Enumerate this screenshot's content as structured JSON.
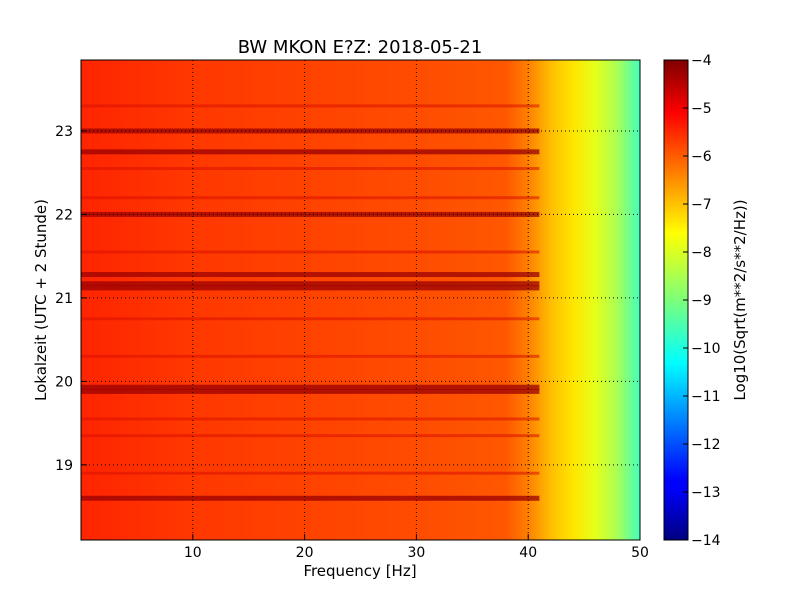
{
  "chart_data": {
    "type": "heatmap",
    "title": "BW MKON E?Z: 2018-05-21",
    "xlabel": "Frequency [Hz]",
    "ylabel": "Lokalzeit (UTC + 2 Stunde)",
    "xlim": [
      0,
      50
    ],
    "ylim": [
      23.85,
      18.1
    ],
    "y_axis_inverted": true,
    "x_ticks": [
      10,
      20,
      30,
      40,
      50
    ],
    "x_tick_labels": [
      "10",
      "20",
      "30",
      "40",
      "50"
    ],
    "y_ticks": [
      19,
      20,
      21,
      22,
      23
    ],
    "y_tick_labels": [
      "19",
      "20",
      "21",
      "22",
      "23"
    ],
    "grid": "dotted",
    "colorbar": {
      "label": "Log10(Sqrt(m**2/s**2/Hz))",
      "colormap": "jet",
      "range": [
        -14,
        -4
      ],
      "ticks": [
        -4,
        -5,
        -6,
        -7,
        -8,
        -9,
        -10,
        -11,
        -12,
        -13,
        -14
      ],
      "tick_labels": [
        "−4",
        "−5",
        "−6",
        "−7",
        "−8",
        "−9",
        "−10",
        "−11",
        "−12",
        "−13",
        "−14"
      ]
    },
    "spectral_profile": {
      "description_values_log10": true,
      "frequency_hz": [
        0,
        5,
        10,
        20,
        30,
        38,
        40,
        42,
        44,
        46,
        48,
        50
      ],
      "level": [
        -5.6,
        -5.7,
        -5.8,
        -5.9,
        -6.0,
        -6.1,
        -6.5,
        -7.1,
        -7.5,
        -8.0,
        -8.6,
        -9.6
      ]
    },
    "strong_bands_hour": [
      18.6,
      19.88,
      19.93,
      21.12,
      21.17,
      21.28,
      22.0,
      22.75,
      23.0
    ],
    "weak_bands_hour": [
      18.9,
      19.35,
      19.55,
      20.3,
      20.75,
      21.55,
      22.2,
      22.55,
      23.3
    ]
  }
}
